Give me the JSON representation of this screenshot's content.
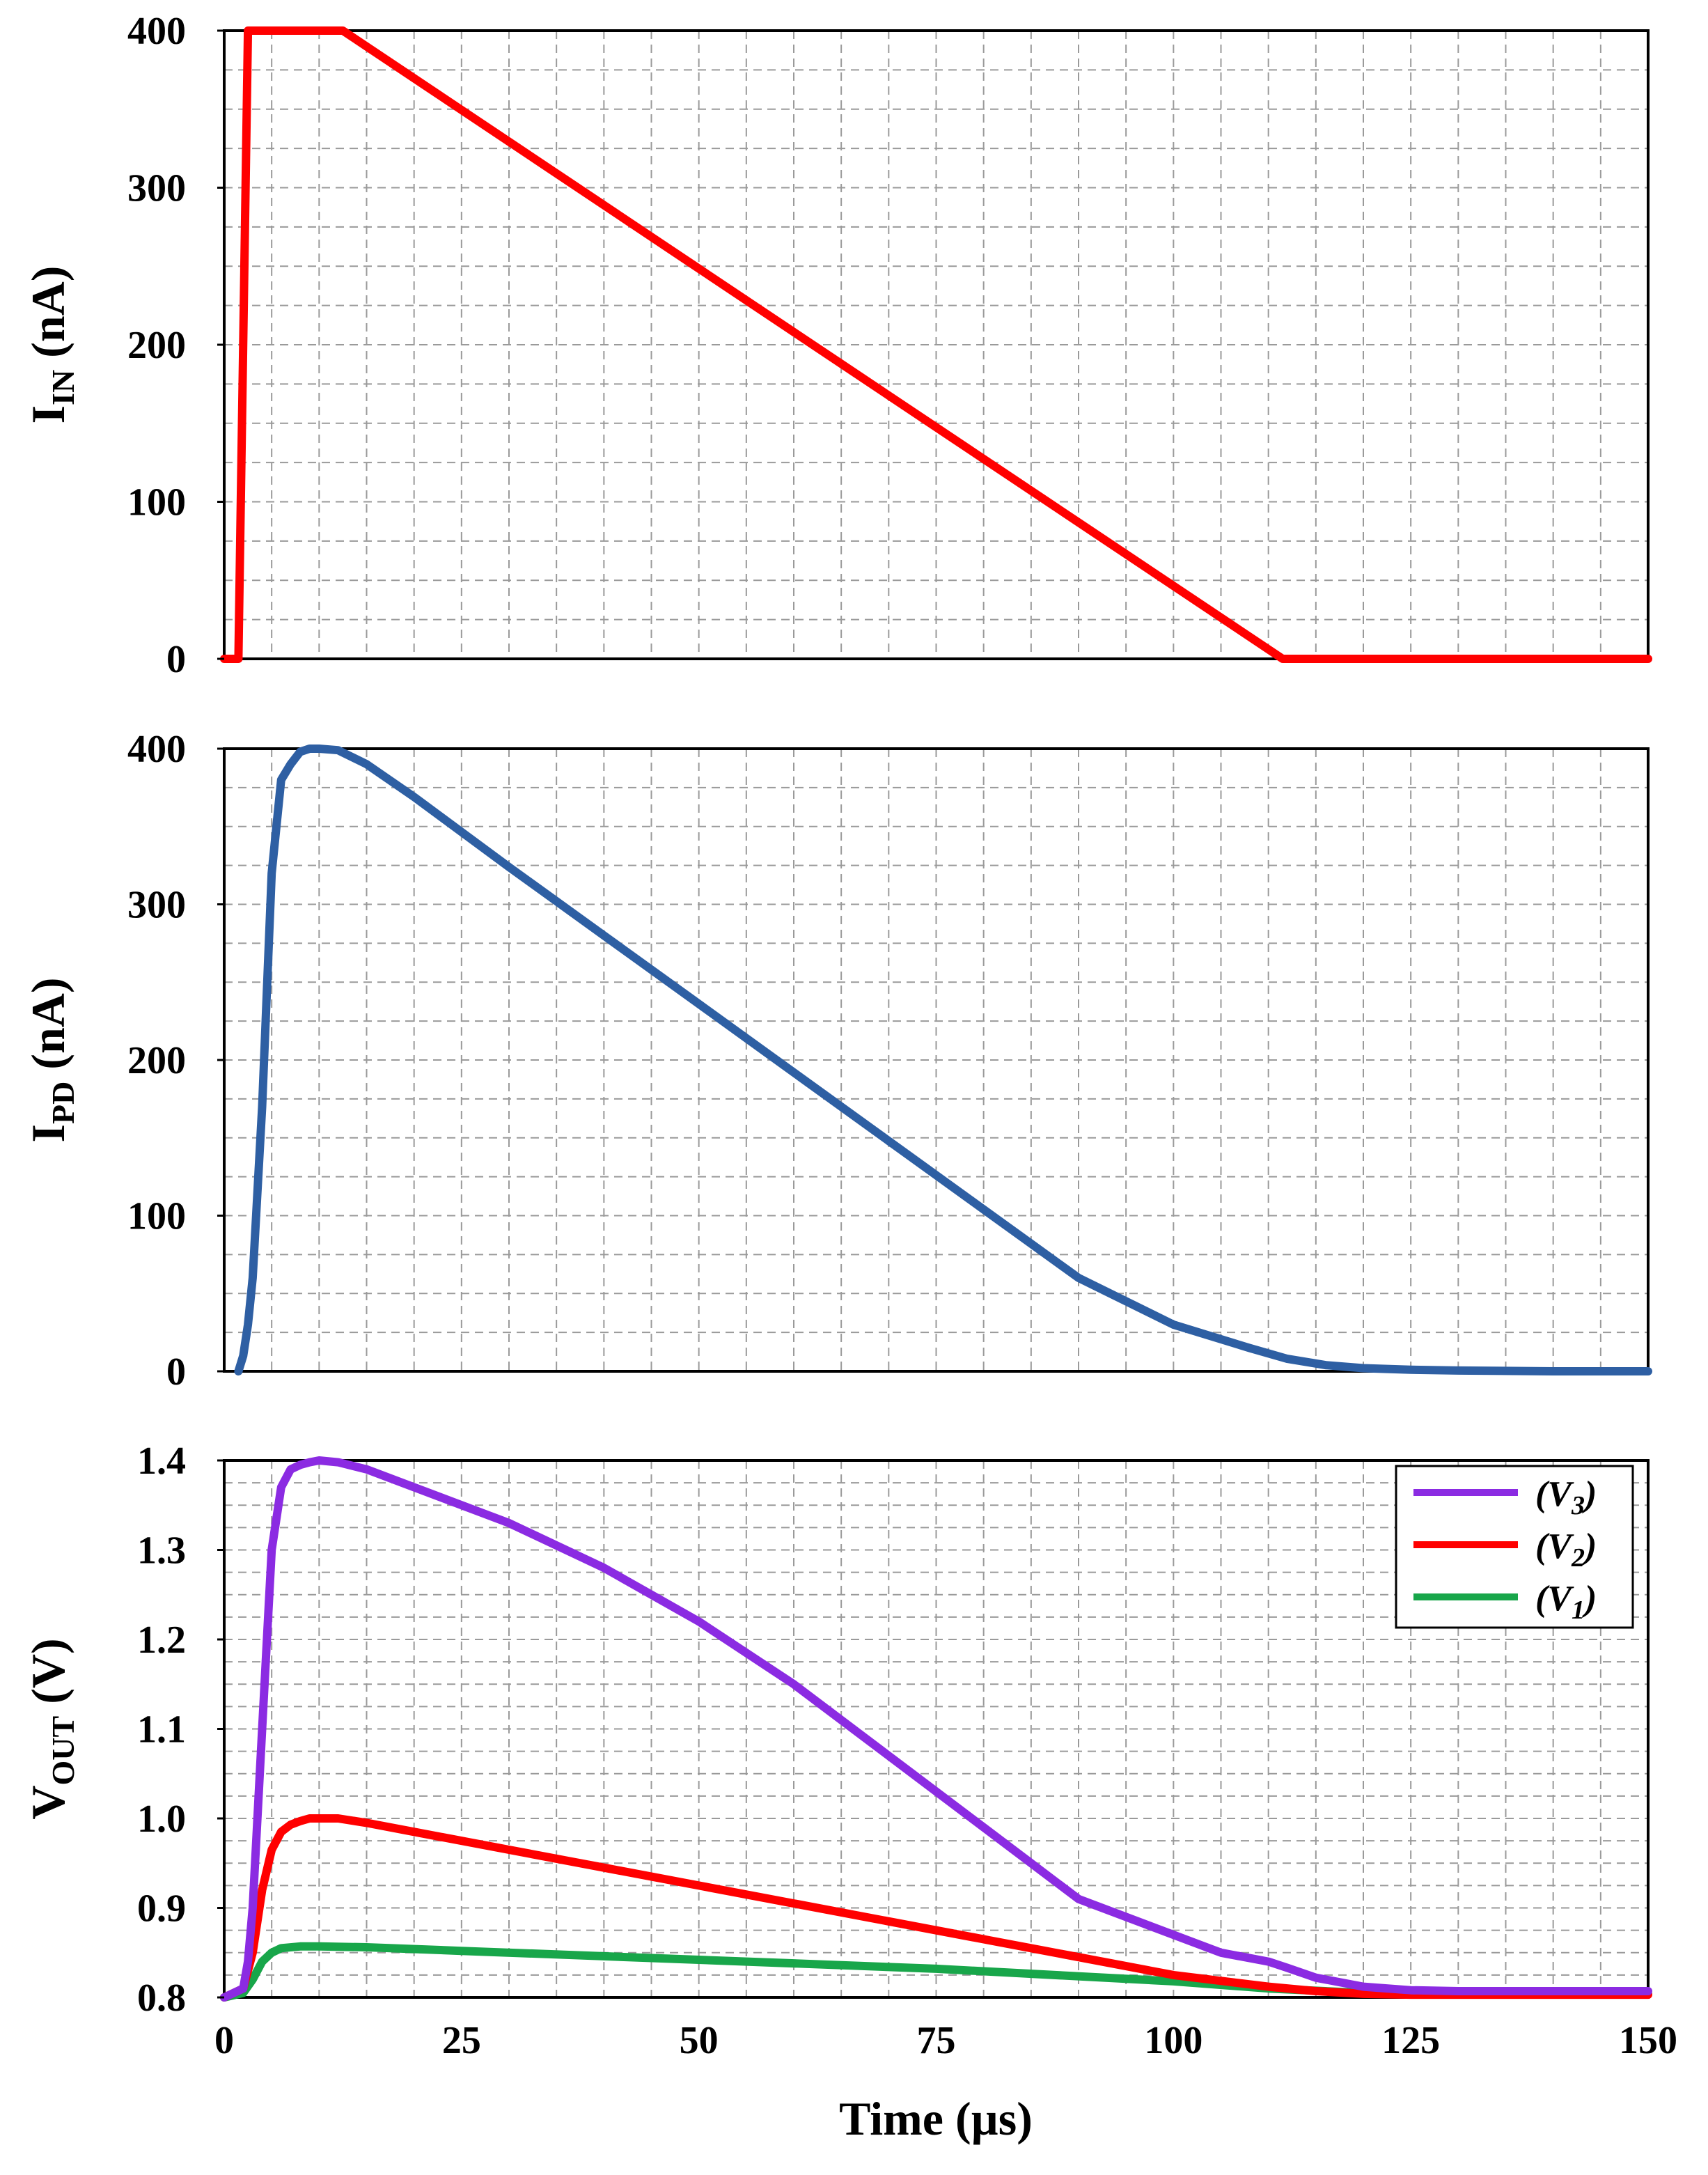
{
  "chart_data": [
    {
      "id": "iin",
      "type": "line",
      "ylabel_main": "I",
      "ylabel_sub": "IN",
      "ylabel_unit": " (nA)",
      "xlim": [
        0,
        150
      ],
      "ylim": [
        0,
        400
      ],
      "yticks": [
        0,
        100,
        200,
        300,
        400
      ],
      "ytick_labels": [
        "0",
        "100",
        "200",
        "300",
        "400"
      ],
      "grid": true,
      "series": [
        {
          "name": "I_IN",
          "color": "#ff0000",
          "x": [
            0,
            1.5,
            2.5,
            12.5,
            111.5,
            150
          ],
          "y": [
            0,
            0,
            400,
            400,
            0,
            0
          ]
        }
      ]
    },
    {
      "id": "ipd",
      "type": "line",
      "ylabel_main": "I",
      "ylabel_sub": "PD",
      "ylabel_unit": " (nA)",
      "xlim": [
        0,
        150
      ],
      "ylim": [
        0,
        400
      ],
      "yticks": [
        0,
        100,
        200,
        300,
        400
      ],
      "ytick_labels": [
        "0",
        "100",
        "200",
        "300",
        "400"
      ],
      "grid": true,
      "series": [
        {
          "name": "I_PD",
          "color": "#2e5fa3",
          "x": [
            1.5,
            2,
            2.5,
            3,
            4,
            5,
            6,
            7,
            8,
            9,
            10,
            12,
            15,
            20,
            30,
            40,
            50,
            60,
            70,
            80,
            90,
            100,
            108,
            112,
            116,
            120,
            125,
            130,
            140,
            150
          ],
          "y": [
            0,
            10,
            30,
            60,
            170,
            320,
            380,
            390,
            398,
            400,
            400,
            399,
            390,
            369,
            324,
            280,
            236,
            192,
            148,
            104,
            60,
            30,
            15,
            8,
            4,
            2,
            1,
            0.5,
            0,
            0
          ]
        }
      ]
    },
    {
      "id": "vout",
      "type": "line",
      "ylabel_main": "V",
      "ylabel_sub": "OUT",
      "ylabel_unit": " (V)",
      "xlabel": "Time (µs)",
      "xlim": [
        0,
        150
      ],
      "xticks": [
        0,
        25,
        50,
        75,
        100,
        125,
        150
      ],
      "xtick_labels": [
        "0",
        "25",
        "50",
        "75",
        "100",
        "125",
        "150"
      ],
      "ylim": [
        0.8,
        1.4
      ],
      "yticks": [
        0.8,
        0.9,
        1.0,
        1.1,
        1.2,
        1.3,
        1.4
      ],
      "ytick_labels": [
        "0.8",
        "0.9",
        "1.0",
        "1.1",
        "1.2",
        "1.3",
        "1.4"
      ],
      "grid": true,
      "legend_position": "top-right",
      "series": [
        {
          "name": "(V3)",
          "label_main": "(V",
          "label_sub": "3",
          "label_end": ")",
          "color": "#8b2be2",
          "x": [
            0,
            2,
            2.5,
            3,
            4,
            5,
            6,
            7,
            8,
            9,
            10,
            12,
            15,
            20,
            30,
            40,
            50,
            60,
            70,
            80,
            90,
            100,
            105,
            110,
            112,
            115,
            120,
            125,
            130,
            150
          ],
          "y": [
            0.8,
            0.81,
            0.84,
            0.9,
            1.1,
            1.3,
            1.37,
            1.39,
            1.395,
            1.398,
            1.4,
            1.398,
            1.39,
            1.37,
            1.33,
            1.28,
            1.22,
            1.15,
            1.07,
            0.99,
            0.91,
            0.87,
            0.85,
            0.84,
            0.833,
            0.822,
            0.812,
            0.808,
            0.807,
            0.807
          ]
        },
        {
          "name": "(V2)",
          "label_main": "(V",
          "label_sub": "2",
          "label_end": ")",
          "color": "#ff0000",
          "x": [
            0,
            2,
            3,
            4,
            5,
            6,
            7,
            8,
            9,
            10,
            12,
            15,
            20,
            30,
            40,
            50,
            60,
            70,
            80,
            90,
            100,
            110,
            115,
            120,
            125,
            150
          ],
          "y": [
            0.8,
            0.81,
            0.85,
            0.92,
            0.965,
            0.985,
            0.993,
            0.997,
            1.0,
            1.0,
            1.0,
            0.995,
            0.985,
            0.965,
            0.945,
            0.925,
            0.905,
            0.885,
            0.865,
            0.845,
            0.825,
            0.812,
            0.807,
            0.804,
            0.803,
            0.803
          ]
        },
        {
          "name": "(V1)",
          "label_main": "(V",
          "label_sub": "1",
          "label_end": ")",
          "color": "#18a64a",
          "x": [
            0,
            2,
            3,
            4,
            5,
            6,
            8,
            10,
            15,
            25,
            50,
            75,
            100,
            110,
            120,
            150
          ],
          "y": [
            0.8,
            0.805,
            0.82,
            0.84,
            0.85,
            0.855,
            0.857,
            0.857,
            0.856,
            0.852,
            0.842,
            0.832,
            0.818,
            0.81,
            0.805,
            0.804
          ]
        }
      ]
    }
  ]
}
